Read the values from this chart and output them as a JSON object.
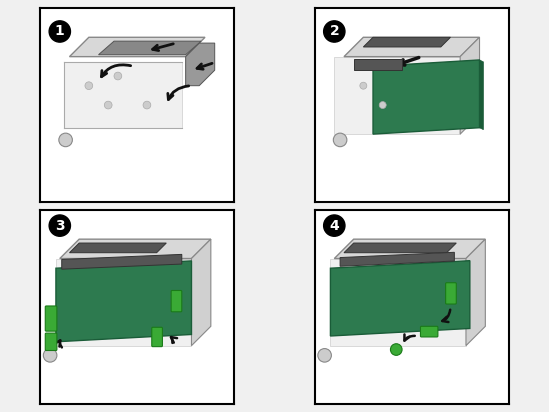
{
  "bg_color": "#f0f0f0",
  "panel_bg": "#ffffff",
  "border_color": "#000000",
  "step_labels": [
    "1",
    "2",
    "3",
    "4"
  ],
  "step_badge_color": "#000000",
  "step_badge_text_color": "#ffffff",
  "card_color": "#2d7a4f",
  "card_edge_color": "#1a5c38",
  "connector_color": "#555555",
  "chassis_color": "#d8d8d8",
  "chassis_edge": "#888888",
  "arrow_color": "#111111",
  "green_tab_color": "#3aaa35",
  "green_tab_edge": "#1a7a18",
  "fig_width": 5.49,
  "fig_height": 4.12,
  "dpi": 100
}
